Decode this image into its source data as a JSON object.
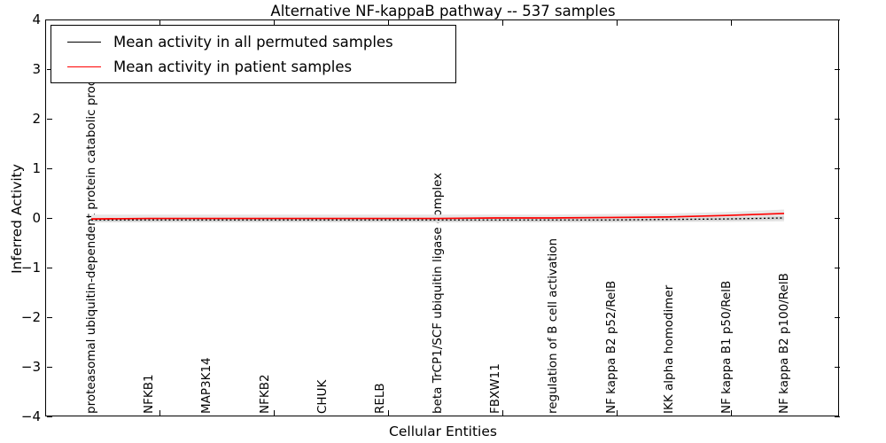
{
  "title": "Alternative NF-kappaB pathway -- 537 samples",
  "legend": {
    "items": [
      {
        "label": "Mean activity in all permuted samples",
        "color": "#000000"
      },
      {
        "label": "Mean activity in patient samples",
        "color": "#ff0000"
      }
    ]
  },
  "axes": {
    "xlabel": "Cellular Entities",
    "ylabel": "Inferred Activity",
    "y_tick_labels": [
      "4",
      "3",
      "2",
      "1",
      "0",
      "−1",
      "−2",
      "−3",
      "−4"
    ]
  },
  "chart_data": {
    "type": "line",
    "title": "Alternative NF-kappaB pathway -- 537 samples",
    "xlabel": "Cellular Entities",
    "ylabel": "Inferred Activity",
    "ylim": [
      -4,
      4
    ],
    "y_ticks": [
      4,
      3,
      2,
      1,
      0,
      -1,
      -2,
      -3,
      -4
    ],
    "grid": false,
    "legend_position": "upper left",
    "categories": [
      "proteasomal ubiquitin-dependent protein catabolic process",
      "NFKB1",
      "MAP3K14",
      "NFKB2",
      "CHUK",
      "RELB",
      "beta TrCP1/SCF ubiquitin ligase complex",
      "FBXW11",
      "regulation of B cell activation",
      "NF kappa B2 p52/RelB",
      "IKK alpha homodimer",
      "NF kappa B1 p50/RelB",
      "NF kappa B2 p100/RelB"
    ],
    "series": [
      {
        "name": "Mean activity in all permuted samples",
        "color": "#000000",
        "style": "dotted",
        "values": [
          -0.04,
          -0.04,
          -0.04,
          -0.04,
          -0.04,
          -0.04,
          -0.04,
          -0.04,
          -0.04,
          -0.04,
          -0.03,
          -0.02,
          0.0
        ]
      },
      {
        "name": "Mean activity in patient samples",
        "color": "#ff0000",
        "style": "solid",
        "values": [
          -0.02,
          -0.01,
          -0.01,
          -0.01,
          -0.01,
          -0.01,
          -0.01,
          0.0,
          0.0,
          0.01,
          0.02,
          0.05,
          0.09
        ]
      }
    ],
    "band": {
      "comment_color_outer": "#e7e7e7",
      "comment_color_inner": "#d2d2d2",
      "upper": [
        0.07,
        0.07,
        0.07,
        0.07,
        0.07,
        0.07,
        0.07,
        0.07,
        0.07,
        0.08,
        0.09,
        0.12,
        0.17
      ],
      "lower": [
        -0.09,
        -0.09,
        -0.09,
        -0.09,
        -0.09,
        -0.09,
        -0.09,
        -0.09,
        -0.09,
        -0.09,
        -0.08,
        -0.08,
        -0.07
      ]
    }
  }
}
